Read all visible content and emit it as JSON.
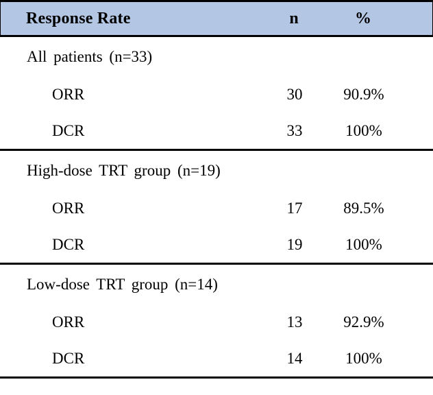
{
  "table": {
    "header": {
      "label": "Response Rate",
      "col_n": "n",
      "col_pct": "%"
    },
    "sections": [
      {
        "title": "All patients (n=33)",
        "rows": [
          {
            "label": "ORR",
            "n": "30",
            "pct": "90.9%"
          },
          {
            "label": "DCR",
            "n": "33",
            "pct": "100%"
          }
        ]
      },
      {
        "title": "High-dose TRT group (n=19)",
        "rows": [
          {
            "label": "ORR",
            "n": "17",
            "pct": "89.5%"
          },
          {
            "label": "DCR",
            "n": "19",
            "pct": "100%"
          }
        ]
      },
      {
        "title": "Low-dose TRT group (n=14)",
        "rows": [
          {
            "label": "ORR",
            "n": "13",
            "pct": "92.9%"
          },
          {
            "label": "DCR",
            "n": "14",
            "pct": "100%"
          }
        ]
      }
    ],
    "colors": {
      "header_bg": "#b3c6e4",
      "border": "#000000",
      "text": "#000000"
    }
  }
}
